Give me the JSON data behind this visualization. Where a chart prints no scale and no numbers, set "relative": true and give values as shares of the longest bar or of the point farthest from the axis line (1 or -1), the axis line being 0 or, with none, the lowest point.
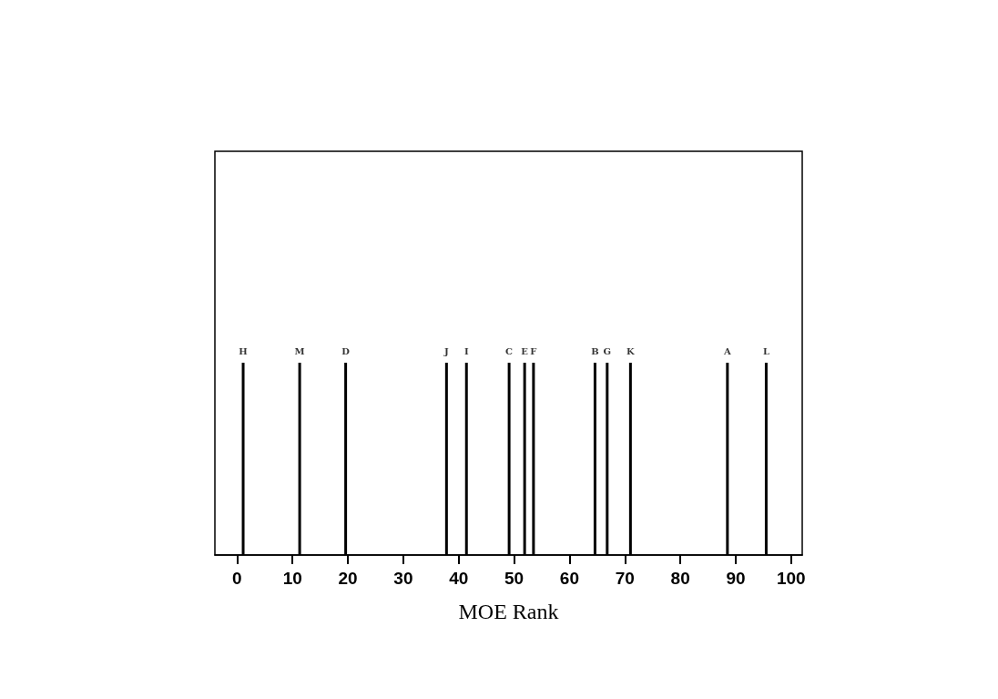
{
  "chart_data": {
    "type": "bar",
    "xlabel": "MOE Rank",
    "relative": true,
    "x": [
      1.1,
      11.3,
      19.6,
      37.8,
      41.4,
      49.1,
      51.9,
      53.5,
      64.6,
      66.8,
      71.0,
      88.5,
      95.5
    ],
    "values": [
      1,
      1,
      1,
      1,
      1,
      1,
      1,
      1,
      1,
      1,
      1,
      1,
      1
    ],
    "annotations": [
      {
        "text": "H",
        "x": 1.1,
        "y": 1
      },
      {
        "text": "M",
        "x": 11.3,
        "y": 1
      },
      {
        "text": "D",
        "x": 19.6,
        "y": 1
      },
      {
        "text": "J",
        "x": 37.8,
        "y": 1
      },
      {
        "text": "I",
        "x": 41.4,
        "y": 1
      },
      {
        "text": "C",
        "x": 49.1,
        "y": 1
      },
      {
        "text": "E",
        "x": 51.9,
        "y": 1
      },
      {
        "text": "F",
        "x": 53.5,
        "y": 1
      },
      {
        "text": "B",
        "x": 64.6,
        "y": 1
      },
      {
        "text": "G",
        "x": 66.8,
        "y": 1
      },
      {
        "text": "K",
        "x": 71.0,
        "y": 1
      },
      {
        "text": "A",
        "x": 88.5,
        "y": 1
      },
      {
        "text": "L",
        "x": 95.5,
        "y": 1
      }
    ],
    "color": "#000000",
    "xlim": [
      -4,
      102
    ],
    "xticks": [
      0,
      10,
      20,
      30,
      40,
      50,
      60,
      70,
      80,
      90,
      100
    ],
    "grid": false
  }
}
